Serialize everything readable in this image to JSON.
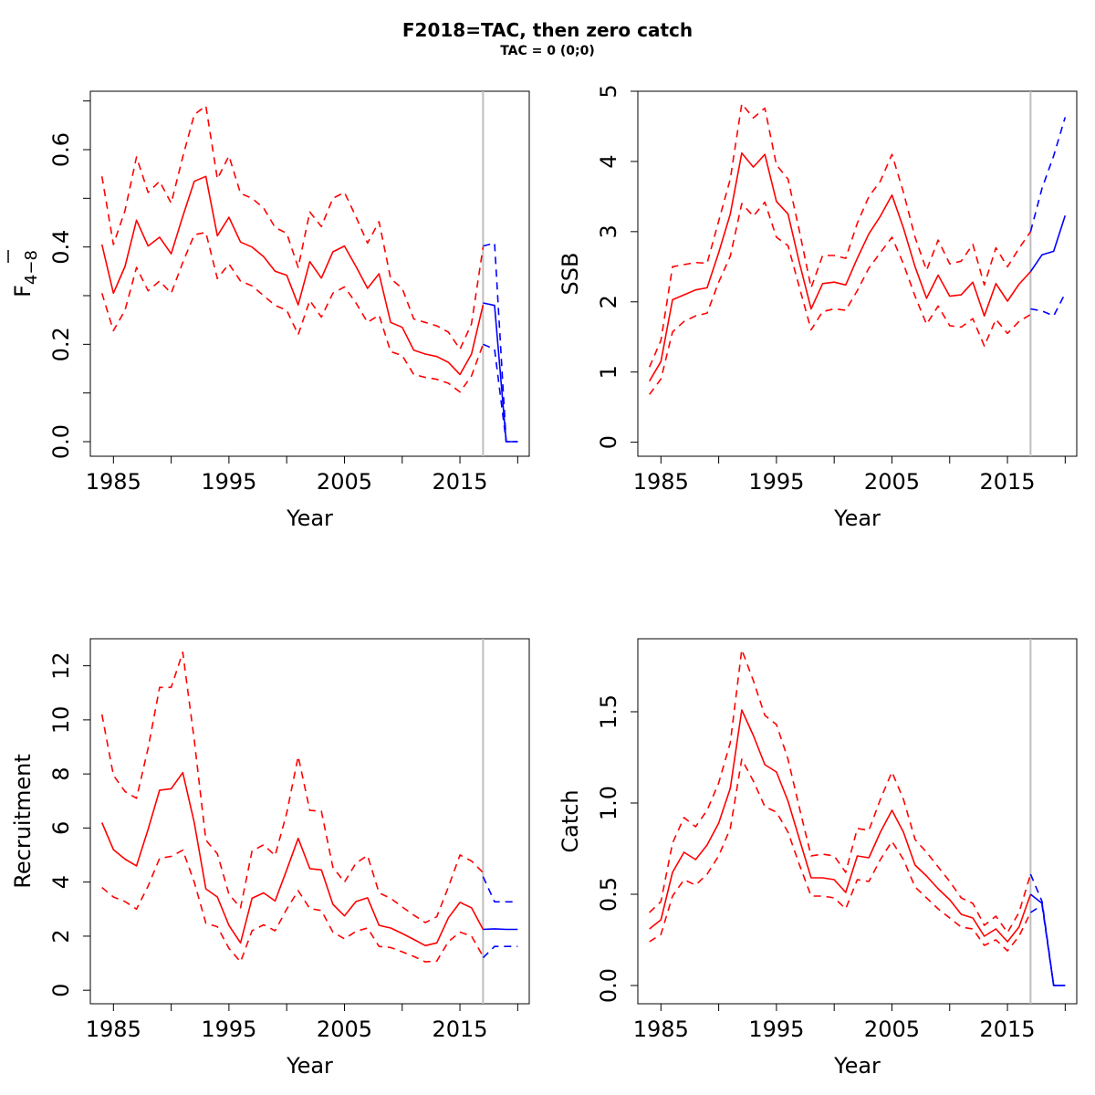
{
  "figure": {
    "title": "F2018=TAC, then zero catch",
    "subtitle": "TAC = 0 (0;0)"
  },
  "colors": {
    "historic": "#ff0000",
    "forecast": "#0000ff",
    "divider": "#bebebe"
  },
  "chart_data": [
    {
      "type": "line",
      "panel": "top-left",
      "xlabel": "Year",
      "ylabel": "F",
      "ylabel_subscript": "4−8",
      "ylabel_overbar": true,
      "xlim": [
        1983,
        2021
      ],
      "ylim": [
        -0.03,
        0.72
      ],
      "x_ticks": [
        1985,
        1990,
        1995,
        2000,
        2005,
        2010,
        2015,
        2020
      ],
      "x_tick_labels": [
        "1985",
        "",
        "1995",
        "",
        "2005",
        "",
        "2015",
        ""
      ],
      "y_ticks": [
        0.0,
        0.1,
        0.2,
        0.3,
        0.4,
        0.5,
        0.6,
        0.7
      ],
      "y_tick_labels": [
        "0.0",
        "",
        "0.2",
        "",
        "0.4",
        "",
        "0.6",
        ""
      ],
      "divider_x": 2017,
      "historic": {
        "x": [
          1984,
          1985,
          1986,
          1987,
          1988,
          1989,
          1990,
          1991,
          1992,
          1993,
          1994,
          1995,
          1996,
          1997,
          1998,
          1999,
          2000,
          2001,
          2002,
          2003,
          2004,
          2005,
          2006,
          2007,
          2008,
          2009,
          2010,
          2011,
          2012,
          2013,
          2014,
          2015,
          2016,
          2017
        ],
        "estimate": [
          0.405,
          0.305,
          0.36,
          0.455,
          0.402,
          0.42,
          0.386,
          0.463,
          0.535,
          0.545,
          0.423,
          0.461,
          0.41,
          0.4,
          0.38,
          0.35,
          0.342,
          0.281,
          0.37,
          0.336,
          0.39,
          0.402,
          0.36,
          0.315,
          0.345,
          0.245,
          0.235,
          0.188,
          0.18,
          0.175,
          0.163,
          0.138,
          0.18,
          0.281
        ],
        "low": [
          0.305,
          0.228,
          0.27,
          0.358,
          0.31,
          0.33,
          0.305,
          0.368,
          0.425,
          0.43,
          0.335,
          0.365,
          0.33,
          0.32,
          0.3,
          0.28,
          0.27,
          0.22,
          0.29,
          0.256,
          0.305,
          0.318,
          0.285,
          0.245,
          0.26,
          0.185,
          0.177,
          0.138,
          0.132,
          0.128,
          0.12,
          0.102,
          0.135,
          0.2
        ],
        "high": [
          0.545,
          0.405,
          0.475,
          0.585,
          0.512,
          0.535,
          0.49,
          0.585,
          0.672,
          0.69,
          0.54,
          0.587,
          0.51,
          0.5,
          0.48,
          0.44,
          0.428,
          0.358,
          0.472,
          0.442,
          0.5,
          0.512,
          0.462,
          0.408,
          0.452,
          0.335,
          0.315,
          0.252,
          0.245,
          0.238,
          0.225,
          0.19,
          0.242,
          0.4
        ]
      },
      "forecast": {
        "x": [
          2017,
          2018,
          2019,
          2020
        ],
        "estimate": [
          0.285,
          0.28,
          0.0,
          0.0
        ],
        "low": [
          0.2,
          0.19,
          0.0,
          0.0
        ],
        "high": [
          0.402,
          0.408,
          0.0,
          0.0
        ]
      }
    },
    {
      "type": "line",
      "panel": "top-right",
      "xlabel": "Year",
      "ylabel": "SSB",
      "xlim": [
        1983,
        2021
      ],
      "ylim": [
        -0.2,
        5.0
      ],
      "x_ticks": [
        1985,
        1990,
        1995,
        2000,
        2005,
        2010,
        2015,
        2020
      ],
      "x_tick_labels": [
        "1985",
        "",
        "1995",
        "",
        "2005",
        "",
        "2015",
        ""
      ],
      "y_ticks": [
        0,
        1,
        2,
        3,
        4,
        5
      ],
      "y_tick_labels": [
        "0",
        "1",
        "2",
        "3",
        "4",
        "5"
      ],
      "divider_x": 2017,
      "historic": {
        "x": [
          1984,
          1985,
          1986,
          1987,
          1988,
          1989,
          1990,
          1991,
          1992,
          1993,
          1994,
          1995,
          1996,
          1997,
          1998,
          1999,
          2000,
          2001,
          2002,
          2003,
          2004,
          2005,
          2006,
          2007,
          2008,
          2009,
          2010,
          2011,
          2012,
          2013,
          2014,
          2015,
          2016,
          2017
        ],
        "estimate": [
          0.87,
          1.15,
          2.03,
          2.1,
          2.17,
          2.2,
          2.7,
          3.25,
          4.12,
          3.92,
          4.1,
          3.43,
          3.25,
          2.55,
          1.9,
          2.26,
          2.28,
          2.24,
          2.62,
          2.97,
          3.22,
          3.52,
          3.05,
          2.5,
          2.05,
          2.38,
          2.08,
          2.1,
          2.28,
          1.8,
          2.26,
          2.01,
          2.25,
          2.43
        ],
        "low": [
          0.68,
          0.9,
          1.57,
          1.72,
          1.8,
          1.84,
          2.28,
          2.65,
          3.4,
          3.22,
          3.42,
          2.92,
          2.8,
          2.2,
          1.6,
          1.86,
          1.9,
          1.88,
          2.16,
          2.48,
          2.7,
          2.92,
          2.54,
          2.08,
          1.68,
          1.94,
          1.66,
          1.64,
          1.76,
          1.37,
          1.75,
          1.55,
          1.72,
          1.82
        ],
        "high": [
          1.07,
          1.45,
          2.5,
          2.53,
          2.56,
          2.55,
          3.15,
          3.75,
          4.82,
          4.62,
          4.76,
          3.95,
          3.75,
          3.0,
          2.2,
          2.66,
          2.66,
          2.62,
          3.12,
          3.5,
          3.72,
          4.1,
          3.56,
          2.92,
          2.45,
          2.88,
          2.54,
          2.58,
          2.82,
          2.24,
          2.77,
          2.5,
          2.76,
          3.0
        ]
      },
      "forecast": {
        "x": [
          2017,
          2018,
          2019,
          2020
        ],
        "estimate": [
          2.43,
          2.67,
          2.72,
          3.23
        ],
        "low": [
          1.9,
          1.87,
          1.8,
          2.12
        ],
        "high": [
          3.0,
          3.62,
          4.08,
          4.63
        ]
      }
    },
    {
      "type": "line",
      "panel": "bottom-left",
      "xlabel": "Year",
      "ylabel": "Recruitment",
      "xlim": [
        1983,
        2021
      ],
      "ylim": [
        -0.5,
        13.0
      ],
      "x_ticks": [
        1985,
        1990,
        1995,
        2000,
        2005,
        2010,
        2015,
        2020
      ],
      "x_tick_labels": [
        "1985",
        "",
        "1995",
        "",
        "2005",
        "",
        "2015",
        ""
      ],
      "y_ticks": [
        0,
        2,
        4,
        6,
        8,
        10,
        12
      ],
      "y_tick_labels": [
        "0",
        "2",
        "4",
        "6",
        "8",
        "10",
        "12"
      ],
      "divider_x": 2017,
      "historic": {
        "x": [
          1984,
          1985,
          1986,
          1987,
          1988,
          1989,
          1990,
          1991,
          1992,
          1993,
          1994,
          1995,
          1996,
          1997,
          1998,
          1999,
          2000,
          2001,
          2002,
          2003,
          2004,
          2005,
          2006,
          2007,
          2008,
          2009,
          2010,
          2011,
          2012,
          2013,
          2014,
          2015,
          2016,
          2017
        ],
        "estimate": [
          6.2,
          5.2,
          4.85,
          4.6,
          5.95,
          7.4,
          7.45,
          8.05,
          6.2,
          3.75,
          3.45,
          2.4,
          1.75,
          3.4,
          3.6,
          3.3,
          4.45,
          5.62,
          4.5,
          4.45,
          3.18,
          2.75,
          3.28,
          3.42,
          2.4,
          2.3,
          2.1,
          1.88,
          1.65,
          1.75,
          2.68,
          3.25,
          3.05,
          2.25
        ],
        "low": [
          3.8,
          3.45,
          3.28,
          3.0,
          3.85,
          4.88,
          4.95,
          5.18,
          4.0,
          2.48,
          2.35,
          1.55,
          1.05,
          2.2,
          2.42,
          2.2,
          3.0,
          3.68,
          3.02,
          2.95,
          2.15,
          1.9,
          2.18,
          2.3,
          1.62,
          1.58,
          1.42,
          1.25,
          1.05,
          1.08,
          1.8,
          2.15,
          2.0,
          1.25
        ],
        "high": [
          10.2,
          7.95,
          7.35,
          7.1,
          8.95,
          11.2,
          11.2,
          12.5,
          9.25,
          5.55,
          5.05,
          3.55,
          3.05,
          5.15,
          5.38,
          4.98,
          6.55,
          8.65,
          6.65,
          6.62,
          4.55,
          4.0,
          4.7,
          4.98,
          3.6,
          3.4,
          3.08,
          2.78,
          2.5,
          2.72,
          3.82,
          5.0,
          4.78,
          4.35
        ]
      },
      "forecast": {
        "x": [
          2017,
          2018,
          2019,
          2020
        ],
        "estimate": [
          2.25,
          2.27,
          2.25,
          2.25
        ],
        "low": [
          1.2,
          1.62,
          1.62,
          1.62
        ],
        "high": [
          4.2,
          3.27,
          3.27,
          3.27
        ]
      }
    },
    {
      "type": "line",
      "panel": "bottom-right",
      "xlabel": "Year",
      "ylabel": "Catch",
      "xlim": [
        1983,
        2021
      ],
      "ylim": [
        -0.1,
        1.9
      ],
      "x_ticks": [
        1985,
        1990,
        1995,
        2000,
        2005,
        2010,
        2015,
        2020
      ],
      "x_tick_labels": [
        "1985",
        "",
        "1995",
        "",
        "2005",
        "",
        "2015",
        ""
      ],
      "y_ticks": [
        0.0,
        0.5,
        1.0,
        1.5
      ],
      "y_tick_labels": [
        "0.0",
        "0.5",
        "1.0",
        "1.5"
      ],
      "divider_x": 2017,
      "historic": {
        "x": [
          1984,
          1985,
          1986,
          1987,
          1988,
          1989,
          1990,
          1991,
          1992,
          1993,
          1994,
          1995,
          1996,
          1997,
          1998,
          1999,
          2000,
          2001,
          2002,
          2003,
          2004,
          2005,
          2006,
          2007,
          2008,
          2009,
          2010,
          2011,
          2012,
          2013,
          2014,
          2015,
          2016,
          2017
        ],
        "estimate": [
          0.31,
          0.36,
          0.62,
          0.73,
          0.69,
          0.77,
          0.89,
          1.08,
          1.51,
          1.37,
          1.21,
          1.17,
          1.01,
          0.8,
          0.59,
          0.59,
          0.58,
          0.51,
          0.71,
          0.7,
          0.84,
          0.96,
          0.84,
          0.66,
          0.6,
          0.53,
          0.47,
          0.39,
          0.37,
          0.27,
          0.31,
          0.24,
          0.32,
          0.5
        ],
        "low": [
          0.24,
          0.28,
          0.49,
          0.58,
          0.55,
          0.61,
          0.71,
          0.86,
          1.24,
          1.12,
          0.98,
          0.95,
          0.84,
          0.66,
          0.49,
          0.49,
          0.48,
          0.42,
          0.58,
          0.57,
          0.69,
          0.79,
          0.69,
          0.54,
          0.48,
          0.42,
          0.37,
          0.32,
          0.31,
          0.22,
          0.25,
          0.19,
          0.27,
          0.4
        ],
        "high": [
          0.4,
          0.46,
          0.78,
          0.92,
          0.87,
          0.96,
          1.11,
          1.33,
          1.84,
          1.67,
          1.48,
          1.43,
          1.24,
          0.97,
          0.71,
          0.72,
          0.71,
          0.62,
          0.86,
          0.85,
          1.02,
          1.17,
          1.02,
          0.8,
          0.73,
          0.65,
          0.57,
          0.48,
          0.45,
          0.33,
          0.38,
          0.29,
          0.4,
          0.61
        ]
      },
      "forecast": {
        "x": [
          2017,
          2018,
          2019,
          2020
        ],
        "estimate": [
          0.5,
          0.45,
          0.0,
          0.0
        ],
        "low": [
          0.4,
          0.44,
          0.0,
          0.0
        ],
        "high": [
          0.61,
          0.46,
          0.0,
          0.0
        ]
      }
    }
  ]
}
